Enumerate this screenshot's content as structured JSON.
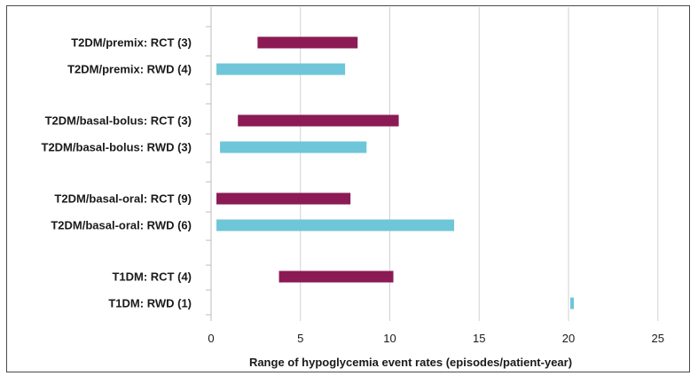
{
  "chart_data": {
    "type": "bar",
    "orientation": "horizontal-range",
    "xlabel": "Range of hypoglycemia event rates (episodes/patient-year)",
    "xlim": [
      0,
      25
    ],
    "xticks": [
      0,
      5,
      10,
      15,
      20,
      25
    ],
    "grid": "vertical",
    "colors": {
      "RCT": "#8b1a55",
      "RWD": "#6ec6d8"
    },
    "categories": [
      {
        "label": "T2DM/premix: RCT (3)",
        "type": "RCT",
        "low": 2.6,
        "high": 8.2
      },
      {
        "label": "T2DM/premix: RWD (4)",
        "type": "RWD",
        "low": 0.3,
        "high": 7.5
      },
      {
        "label": "T2DM/basal-bolus: RCT (3)",
        "type": "RCT",
        "low": 1.5,
        "high": 10.5
      },
      {
        "label": "T2DM/basal-bolus: RWD (3)",
        "type": "RWD",
        "low": 0.5,
        "high": 8.7
      },
      {
        "label": "T2DM/basal-oral: RCT (9)",
        "type": "RCT",
        "low": 0.3,
        "high": 7.8
      },
      {
        "label": "T2DM/basal-oral: RWD (6)",
        "type": "RWD",
        "low": 0.3,
        "high": 13.6
      },
      {
        "label": "T1DM: RCT (4)",
        "type": "RCT",
        "low": 3.8,
        "high": 10.2
      },
      {
        "label": "T1DM: RWD (1)",
        "type": "RWD",
        "low": 20.1,
        "high": 20.3
      }
    ]
  }
}
